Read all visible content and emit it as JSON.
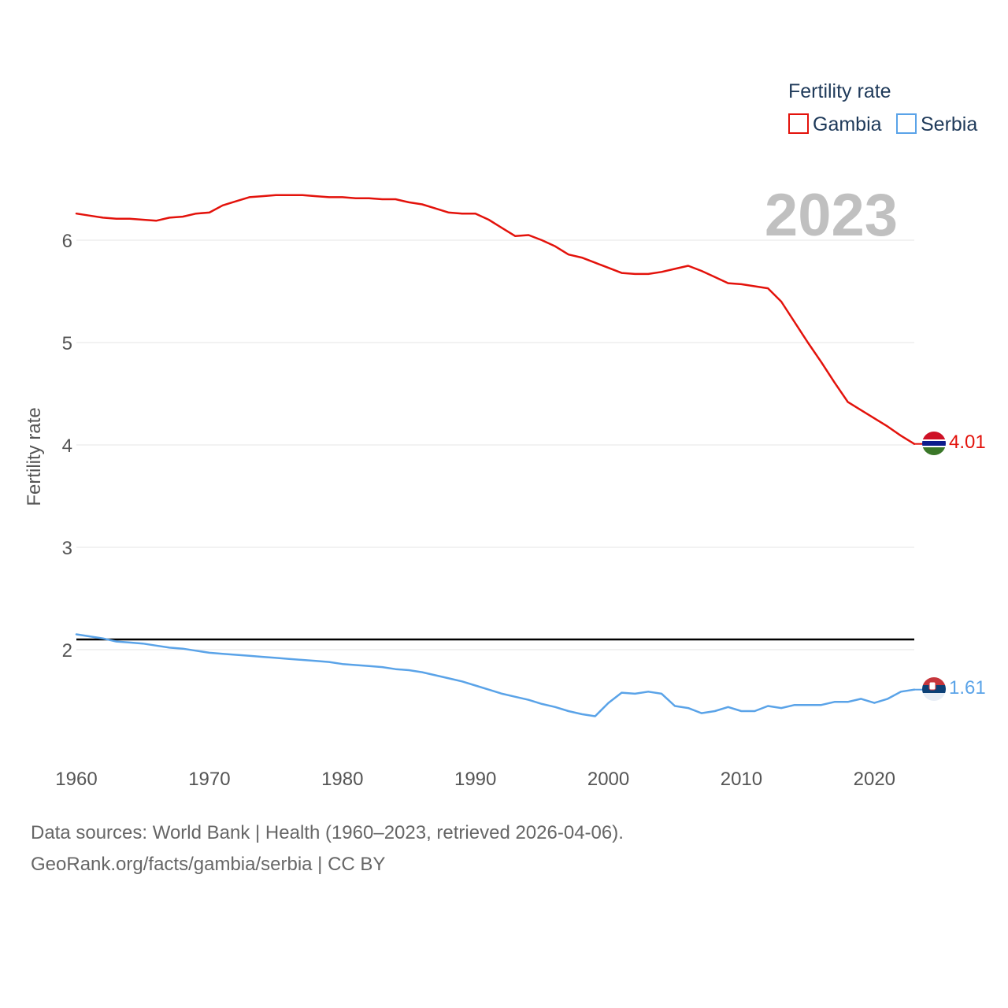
{
  "chart_data": {
    "type": "line",
    "legend_title": "Fertility rate",
    "ylabel": "Fertility rate",
    "year_label": "2023",
    "xlim": [
      1960,
      2023
    ],
    "ylim": [
      1.0,
      7.0
    ],
    "x_ticks": [
      "1960",
      "1970",
      "1980",
      "1990",
      "2000",
      "2010",
      "2020"
    ],
    "y_ticks": [
      "2",
      "3",
      "4",
      "5",
      "6"
    ],
    "reference_line": 2.1,
    "x": [
      1960,
      1961,
      1962,
      1963,
      1964,
      1965,
      1966,
      1967,
      1968,
      1969,
      1970,
      1971,
      1972,
      1973,
      1974,
      1975,
      1976,
      1977,
      1978,
      1979,
      1980,
      1981,
      1982,
      1983,
      1984,
      1985,
      1986,
      1987,
      1988,
      1989,
      1990,
      1991,
      1992,
      1993,
      1994,
      1995,
      1996,
      1997,
      1998,
      1999,
      2000,
      2001,
      2002,
      2003,
      2004,
      2005,
      2006,
      2007,
      2008,
      2009,
      2010,
      2011,
      2012,
      2013,
      2014,
      2015,
      2016,
      2017,
      2018,
      2019,
      2020,
      2021,
      2022,
      2023
    ],
    "series": [
      {
        "name": "Gambia",
        "color": "#e3120b",
        "end_label": "4.01",
        "flag": "gambia-flag-icon",
        "values": [
          6.26,
          6.24,
          6.22,
          6.21,
          6.21,
          6.2,
          6.19,
          6.22,
          6.23,
          6.26,
          6.27,
          6.34,
          6.38,
          6.42,
          6.43,
          6.44,
          6.44,
          6.44,
          6.43,
          6.42,
          6.42,
          6.41,
          6.41,
          6.4,
          6.4,
          6.37,
          6.35,
          6.31,
          6.27,
          6.26,
          6.26,
          6.2,
          6.12,
          6.04,
          6.05,
          6.0,
          5.94,
          5.86,
          5.83,
          5.78,
          5.73,
          5.68,
          5.67,
          5.67,
          5.69,
          5.72,
          5.75,
          5.7,
          5.64,
          5.58,
          5.57,
          5.55,
          5.53,
          5.4,
          5.2,
          5.0,
          4.81,
          4.61,
          4.42,
          4.34,
          4.26,
          4.18,
          4.09,
          4.01
        ]
      },
      {
        "name": "Serbia",
        "color": "#5aa3e8",
        "end_label": "1.61",
        "flag": "serbia-flag-icon",
        "values": [
          2.15,
          2.13,
          2.11,
          2.08,
          2.07,
          2.06,
          2.04,
          2.02,
          2.01,
          1.99,
          1.97,
          1.96,
          1.95,
          1.94,
          1.93,
          1.92,
          1.91,
          1.9,
          1.89,
          1.88,
          1.86,
          1.85,
          1.84,
          1.83,
          1.81,
          1.8,
          1.78,
          1.75,
          1.72,
          1.69,
          1.65,
          1.61,
          1.57,
          1.54,
          1.51,
          1.47,
          1.44,
          1.4,
          1.37,
          1.35,
          1.48,
          1.58,
          1.57,
          1.59,
          1.57,
          1.45,
          1.43,
          1.38,
          1.4,
          1.44,
          1.4,
          1.4,
          1.45,
          1.43,
          1.46,
          1.46,
          1.46,
          1.49,
          1.49,
          1.52,
          1.48,
          1.52,
          1.59,
          1.61
        ]
      }
    ]
  },
  "footer": {
    "line1": "Data sources: World Bank | Health (1960–2023, retrieved 2026-04-06).",
    "line2": "GeoRank.org/facts/gambia/serbia | CC BY"
  }
}
